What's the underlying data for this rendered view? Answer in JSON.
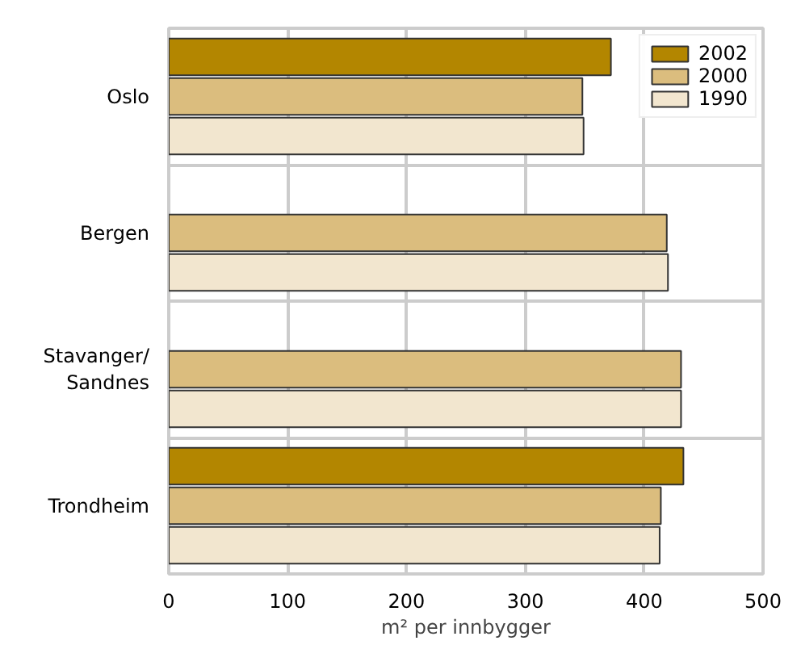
{
  "chart_data": {
    "type": "bar",
    "orientation": "horizontal",
    "xlabel": "m² per innbygger",
    "categories": [
      "Oslo",
      "Bergen",
      "Stavanger/Sandnes",
      "Trondheim"
    ],
    "series": [
      {
        "name": "2002",
        "color": "#b38600",
        "values": [
          372,
          null,
          null,
          433
        ]
      },
      {
        "name": "2000",
        "color": "#dbbd7e",
        "values": [
          348,
          419,
          431,
          414
        ]
      },
      {
        "name": "1990",
        "color": "#f2e6cf",
        "values": [
          349,
          420,
          431,
          413
        ]
      }
    ],
    "xlim": [
      0,
      500
    ],
    "xticks": [
      0,
      100,
      200,
      300,
      400,
      500
    ],
    "grid": true,
    "legend": "top right"
  }
}
